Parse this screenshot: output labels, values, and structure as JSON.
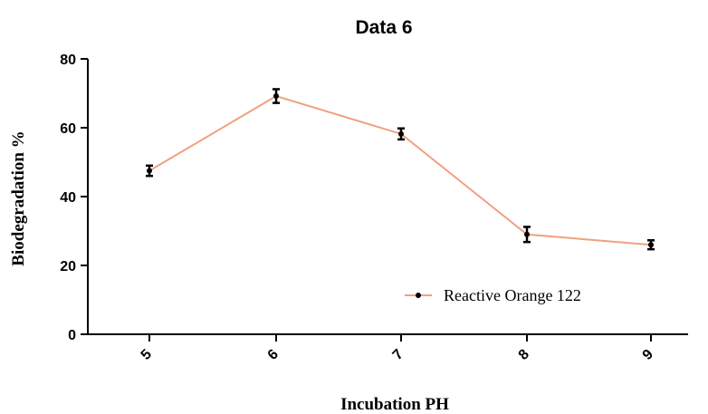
{
  "chart_data": {
    "type": "line",
    "title": "Data 6",
    "xlabel": "Incubation PH",
    "ylabel": "Biodegradation %",
    "categories": [
      "5",
      "6",
      "7",
      "8",
      "9"
    ],
    "ylim": [
      0,
      80
    ],
    "yticks": [
      "0",
      "20",
      "40",
      "60",
      "80"
    ],
    "series": [
      {
        "name": "Reactive Orange 122",
        "color": "#f0a080",
        "values": [
          47.5,
          69.2,
          58.2,
          29.0,
          26.0
        ],
        "errors": [
          1.5,
          2.0,
          1.6,
          2.2,
          1.3
        ]
      }
    ],
    "legend_position": "lower-right",
    "grid": false
  }
}
